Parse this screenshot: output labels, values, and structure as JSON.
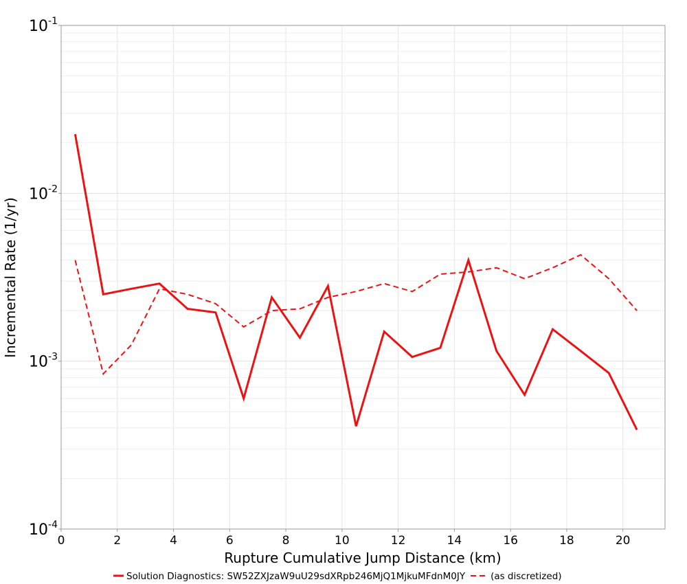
{
  "chart_data": {
    "type": "line",
    "title": "",
    "xlabel": "Rupture Cumulative Jump Distance (km)",
    "ylabel": "Incremental Rate (1/yr)",
    "xlim": [
      0,
      21.5
    ],
    "ylim": [
      0.0001,
      0.1
    ],
    "y_scale": "log",
    "x_ticks": [
      "0",
      "2",
      "4",
      "6",
      "8",
      "10",
      "12",
      "14",
      "16",
      "18",
      "20"
    ],
    "y_ticks": [
      {
        "base": "10",
        "exp": "-1"
      },
      {
        "base": "10",
        "exp": "-2"
      },
      {
        "base": "10",
        "exp": "-3"
      },
      {
        "base": "10",
        "exp": "-4"
      }
    ],
    "grid": true,
    "legend_position": "bottom",
    "x": [
      0.5,
      1.5,
      2.5,
      3.5,
      4.5,
      5.5,
      6.5,
      7.5,
      8.5,
      9.5,
      10.5,
      11.5,
      12.5,
      13.5,
      14.5,
      15.5,
      16.5,
      17.5,
      18.5,
      19.5,
      20.5
    ],
    "series": [
      {
        "name": "Solution Diagnostics: SW52ZXJzaW9uU29sdXRpb246MjQ1MjkuMFdnM0JY",
        "style": "solid",
        "color": "#ee1111",
        "values": [
          0.0225,
          0.0025,
          0.0027,
          0.0029,
          0.00205,
          0.00195,
          0.0006,
          0.0024,
          0.00138,
          0.0028,
          0.00041,
          0.0015,
          0.00106,
          0.0012,
          0.004,
          0.00115,
          0.00063,
          0.00155,
          0.00115,
          0.00085,
          0.00039
        ]
      },
      {
        "name": "(as discretized)",
        "style": "dashed",
        "color": "#ee1111",
        "values": [
          0.004,
          0.00084,
          0.00125,
          0.0027,
          0.0025,
          0.0022,
          0.0016,
          0.002,
          0.00205,
          0.0024,
          0.0026,
          0.0029,
          0.0026,
          0.0033,
          0.0034,
          0.0036,
          0.0031,
          0.0036,
          0.0043,
          0.0031,
          0.002
        ]
      }
    ]
  }
}
